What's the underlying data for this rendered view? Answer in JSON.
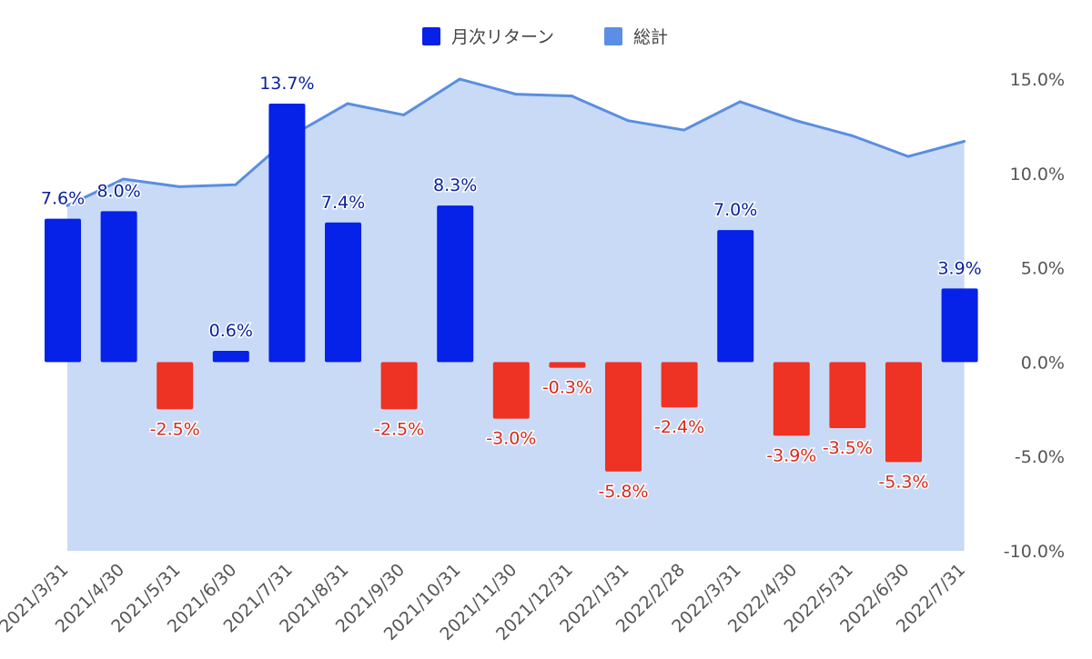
{
  "chart_data": {
    "type": "bar",
    "categories": [
      "2021/3/31",
      "2021/4/30",
      "2021/5/31",
      "2021/6/30",
      "2021/7/31",
      "2021/8/31",
      "2021/9/30",
      "2021/10/31",
      "2021/11/30",
      "2021/12/31",
      "2022/1/31",
      "2022/2/28",
      "2022/3/31",
      "2022/4/30",
      "2022/5/31",
      "2022/6/30",
      "2022/7/31"
    ],
    "series": [
      {
        "name": "月次リターン",
        "type": "bar",
        "values": [
          7.6,
          8.0,
          -2.5,
          0.6,
          13.7,
          7.4,
          -2.5,
          8.3,
          -3.0,
          -0.3,
          -5.8,
          -2.4,
          7.0,
          -3.9,
          -3.5,
          -5.3,
          3.9
        ],
        "labels": [
          "7.6%",
          "8.0%",
          "-2.5%",
          "0.6%",
          "13.7%",
          "7.4%",
          "-2.5%",
          "8.3%",
          "-3.0%",
          "-0.3%",
          "-5.8%",
          "-2.4%",
          "7.0%",
          "-3.9%",
          "-3.5%",
          "-5.3%",
          "3.9%"
        ]
      },
      {
        "name": "総計",
        "type": "area",
        "values": [
          8.3,
          9.7,
          9.3,
          9.4,
          12.0,
          13.7,
          13.1,
          15.0,
          14.2,
          14.1,
          12.8,
          12.3,
          13.8,
          12.8,
          12.0,
          10.9,
          11.7
        ]
      }
    ],
    "yticks": [
      "15.0%",
      "10.0%",
      "5.0%",
      "0.0%",
      "-5.0%",
      "-10.0%"
    ],
    "ylim": [
      -10,
      15
    ],
    "legend_position": "top-center",
    "colors": {
      "positive_bar": "#0621e8",
      "negative_bar": "#ee3223",
      "positive_label": "#0a1f9c",
      "negative_label": "#d8291b",
      "area_fill": "#c9daf7",
      "area_line": "#5a8ee0",
      "legend_total": "#5b8ee6"
    }
  }
}
